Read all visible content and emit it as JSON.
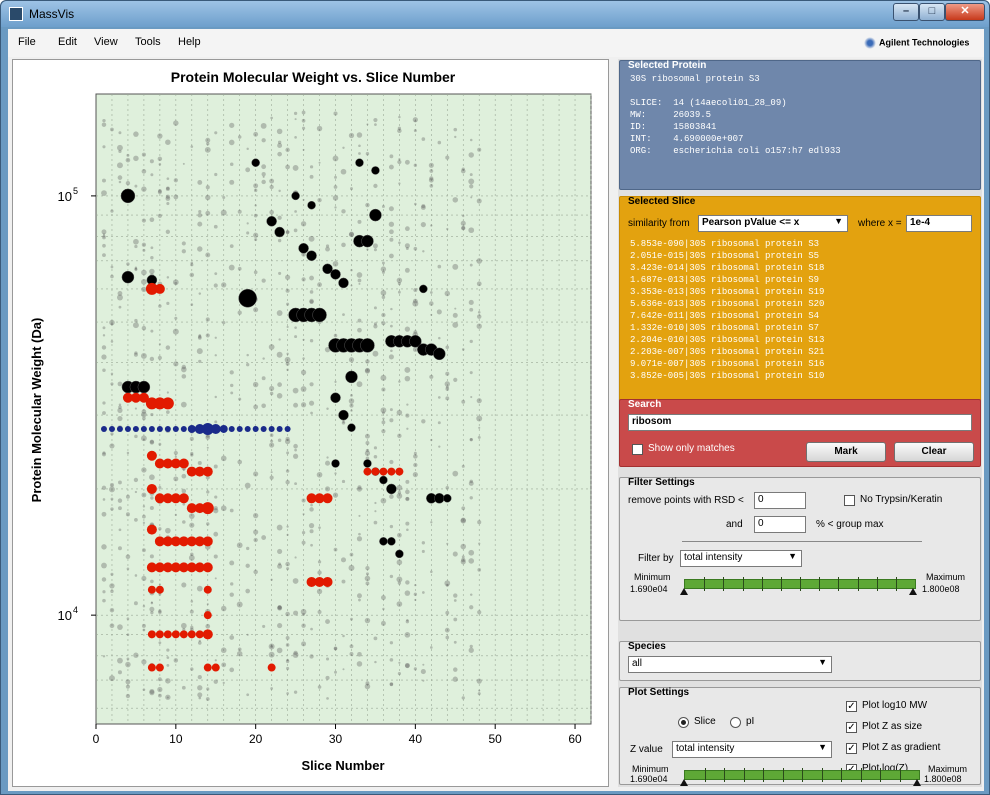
{
  "window": {
    "title": "MassVis",
    "minimize": "–",
    "maximize": "□",
    "close": "✕"
  },
  "menu": {
    "items": [
      "File",
      "Edit",
      "View",
      "Tools",
      "Help"
    ],
    "brand": "Agilent Technologies"
  },
  "colors": {
    "protein_panel": "#6f87ab",
    "slice_panel": "#e3a20f",
    "search_panel": "#c94a4a",
    "highlight": "#e21a00",
    "match": "#1a2a8a"
  },
  "chart_data": {
    "type": "scatter",
    "title": "Protein Molecular Weight vs. Slice Number",
    "xlabel": "Slice Number",
    "ylabel": "Protein Molecular Weight (Da)",
    "xlim": [
      0,
      62
    ],
    "ylim_log": [
      5500,
      175000
    ],
    "x_ticks": [
      "0",
      "10",
      "20",
      "30",
      "40",
      "50",
      "60"
    ],
    "y_tick_labels": [
      {
        "base": "10",
        "exp": "5",
        "value": 100000
      },
      {
        "base": "10",
        "exp": "4",
        "value": 10000
      }
    ],
    "grid": true,
    "series": [
      {
        "color": "#000000",
        "points": [
          [
            4,
            100000
          ],
          [
            4,
            64000
          ],
          [
            7,
            63000
          ],
          [
            19,
            57000
          ],
          [
            4,
            35000
          ],
          [
            5,
            35000
          ],
          [
            6,
            35000
          ],
          [
            25,
            52000
          ],
          [
            26,
            52000
          ],
          [
            27,
            52000
          ],
          [
            28,
            52000
          ],
          [
            30,
            44000
          ],
          [
            31,
            44000
          ],
          [
            32,
            44000
          ],
          [
            33,
            44000
          ],
          [
            34,
            44000
          ],
          [
            37,
            45000
          ],
          [
            38,
            45000
          ],
          [
            39,
            45000
          ],
          [
            40,
            45000
          ],
          [
            41,
            43000
          ],
          [
            42,
            43000
          ],
          [
            43,
            42000
          ],
          [
            33,
            78000
          ],
          [
            34,
            78000
          ],
          [
            35,
            90000
          ],
          [
            32,
            37000
          ],
          [
            29,
            67000
          ],
          [
            30,
            65000
          ],
          [
            31,
            62000
          ],
          [
            22,
            87000
          ],
          [
            23,
            82000
          ],
          [
            26,
            75000
          ],
          [
            27,
            72000
          ],
          [
            30,
            33000
          ],
          [
            31,
            30000
          ],
          [
            32,
            28000
          ],
          [
            30,
            23000
          ],
          [
            34,
            23000
          ],
          [
            35,
            22000
          ],
          [
            36,
            21000
          ],
          [
            37,
            20000
          ],
          [
            42,
            19000
          ],
          [
            43,
            19000
          ],
          [
            44,
            19000
          ],
          [
            36,
            15000
          ],
          [
            37,
            15000
          ],
          [
            38,
            14000
          ],
          [
            25,
            100000
          ],
          [
            27,
            95000
          ],
          [
            33,
            120000
          ],
          [
            35,
            115000
          ],
          [
            41,
            60000
          ],
          [
            20,
            120000
          ]
        ],
        "sizes": [
          7,
          6,
          5,
          9,
          6,
          6,
          6,
          7,
          7,
          7,
          7,
          7,
          7,
          7,
          7,
          7,
          6,
          6,
          6,
          6,
          6,
          6,
          6,
          6,
          6,
          6,
          6,
          5,
          5,
          5,
          5,
          5,
          5,
          5,
          5,
          5,
          4,
          4,
          4,
          4,
          4,
          5,
          5,
          5,
          4,
          4,
          4,
          4,
          4,
          4,
          4,
          4,
          4,
          4
        ]
      },
      {
        "color": "#e21a00",
        "points": [
          [
            7,
            60000
          ],
          [
            8,
            60000
          ],
          [
            4,
            33000
          ],
          [
            5,
            33000
          ],
          [
            6,
            33000
          ],
          [
            7,
            32000
          ],
          [
            8,
            32000
          ],
          [
            9,
            32000
          ],
          [
            7,
            24000
          ],
          [
            8,
            23000
          ],
          [
            9,
            23000
          ],
          [
            10,
            23000
          ],
          [
            11,
            23000
          ],
          [
            12,
            22000
          ],
          [
            13,
            22000
          ],
          [
            14,
            22000
          ],
          [
            7,
            20000
          ],
          [
            8,
            19000
          ],
          [
            9,
            19000
          ],
          [
            10,
            19000
          ],
          [
            11,
            19000
          ],
          [
            12,
            18000
          ],
          [
            13,
            18000
          ],
          [
            14,
            18000
          ],
          [
            27,
            19000
          ],
          [
            28,
            19000
          ],
          [
            29,
            19000
          ],
          [
            34,
            22000
          ],
          [
            35,
            22000
          ],
          [
            36,
            22000
          ],
          [
            37,
            22000
          ],
          [
            38,
            22000
          ],
          [
            7,
            16000
          ],
          [
            8,
            15000
          ],
          [
            9,
            15000
          ],
          [
            10,
            15000
          ],
          [
            11,
            15000
          ],
          [
            12,
            15000
          ],
          [
            13,
            15000
          ],
          [
            14,
            15000
          ],
          [
            7,
            13000
          ],
          [
            8,
            13000
          ],
          [
            9,
            13000
          ],
          [
            10,
            13000
          ],
          [
            11,
            13000
          ],
          [
            12,
            13000
          ],
          [
            13,
            13000
          ],
          [
            14,
            13000
          ],
          [
            27,
            12000
          ],
          [
            28,
            12000
          ],
          [
            29,
            12000
          ],
          [
            7,
            9000
          ],
          [
            8,
            9000
          ],
          [
            9,
            9000
          ],
          [
            10,
            9000
          ],
          [
            11,
            9000
          ],
          [
            12,
            9000
          ],
          [
            13,
            9000
          ],
          [
            14,
            9000
          ],
          [
            7,
            7500
          ],
          [
            8,
            7500
          ],
          [
            14,
            7500
          ],
          [
            15,
            7500
          ],
          [
            22,
            7500
          ],
          [
            7,
            11500
          ],
          [
            8,
            11500
          ],
          [
            14,
            11500
          ],
          [
            14,
            10000
          ]
        ],
        "sizes": [
          6,
          5,
          5,
          5,
          5,
          6,
          6,
          6,
          5,
          5,
          5,
          5,
          5,
          5,
          5,
          5,
          5,
          5,
          5,
          5,
          5,
          5,
          5,
          6,
          5,
          5,
          5,
          4,
          4,
          4,
          4,
          4,
          5,
          5,
          5,
          5,
          5,
          5,
          5,
          5,
          5,
          5,
          5,
          5,
          5,
          5,
          5,
          5,
          5,
          5,
          5,
          4,
          4,
          4,
          4,
          4,
          4,
          4,
          5,
          4,
          4,
          4,
          4,
          4,
          4,
          4,
          4,
          4
        ]
      },
      {
        "color": "#1a2a8a",
        "points": [
          [
            1,
            27800
          ],
          [
            2,
            27800
          ],
          [
            3,
            27800
          ],
          [
            4,
            27800
          ],
          [
            5,
            27800
          ],
          [
            6,
            27800
          ],
          [
            7,
            27800
          ],
          [
            8,
            27800
          ],
          [
            9,
            27800
          ],
          [
            10,
            27800
          ],
          [
            11,
            27800
          ],
          [
            12,
            27800
          ],
          [
            13,
            27800
          ],
          [
            14,
            27800
          ],
          [
            15,
            27800
          ],
          [
            16,
            27800
          ],
          [
            17,
            27800
          ],
          [
            18,
            27800
          ],
          [
            19,
            27800
          ],
          [
            20,
            27800
          ],
          [
            21,
            27800
          ],
          [
            22,
            27800
          ],
          [
            23,
            27800
          ],
          [
            24,
            27800
          ]
        ],
        "sizes": [
          3,
          3,
          3,
          3,
          3,
          3,
          3,
          3,
          3,
          3,
          3,
          4,
          5,
          6,
          5,
          4,
          3,
          3,
          3,
          3,
          3,
          3,
          3,
          3
        ]
      }
    ]
  },
  "selected_protein": {
    "title": "Selected Protein",
    "name": "30S ribosomal protein S3",
    "slice_label": "SLICE:",
    "slice_value": "14 (14aecoli01_28_09)",
    "mw_label": "MW:",
    "mw_value": "26039.5",
    "id_label": "ID:",
    "id_value": "15803841",
    "int_label": "INT:",
    "int_value": "4.690000e+007",
    "org_label": "ORG:",
    "org_value": "escherichia coli o157:h7 edl933"
  },
  "selected_slice": {
    "title": "Selected Slice",
    "similarity_label": "similarity from",
    "similarity_value": "Pearson pValue <= x",
    "where_label": "where x =",
    "where_value": "1e-4",
    "list": [
      "5.853e-090|30S ribosomal protein S3",
      "2.051e-015|30S ribosomal protein S5",
      "3.423e-014|30S ribosomal protein S18",
      "1.687e-013|30S ribosomal protein S9",
      "3.353e-013|30S ribosomal protein S19",
      "5.636e-013|30S ribosomal protein S20",
      "7.642e-011|30S ribosomal protein S4",
      "1.332e-010|30S ribosomal protein S7",
      "2.204e-010|30S ribosomal protein S13",
      "2.203e-007|30S ribosomal protein S21",
      "9.071e-007|30S ribosomal protein S16",
      "3.852e-005|30S ribosomal protein S10"
    ]
  },
  "search": {
    "title": "Search",
    "value": "ribosom",
    "show_matches_label": "Show only matches",
    "mark_label": "Mark",
    "clear_label": "Clear"
  },
  "filter": {
    "title": "Filter Settings",
    "rsd_label": "remove points with RSD <",
    "rsd_value": "0",
    "and_label": "and",
    "and_value": "0",
    "group_label": "% < group max",
    "trypsin_label": "No Trypsin/Keratin",
    "filterby_label": "Filter by",
    "filterby_value": "total intensity",
    "min_label": "Minimum",
    "min_value": "1.690e04",
    "max_label": "Maximum",
    "max_value": "1.800e08"
  },
  "species": {
    "title": "Species",
    "value": "all"
  },
  "plot_settings": {
    "title": "Plot Settings",
    "slice_label": "Slice",
    "pi_label": "pI",
    "log_mw_label": "Plot log10 MW",
    "z_size_label": "Plot Z as size",
    "z_gradient_label": "Plot Z as gradient",
    "log_z_label": "Plot log(Z)",
    "zvalue_label": "Z value",
    "zvalue_value": "total intensity",
    "min_label": "Minimum",
    "min_value": "1.690e04",
    "max_label": "Maximum",
    "max_value": "1.800e08"
  }
}
